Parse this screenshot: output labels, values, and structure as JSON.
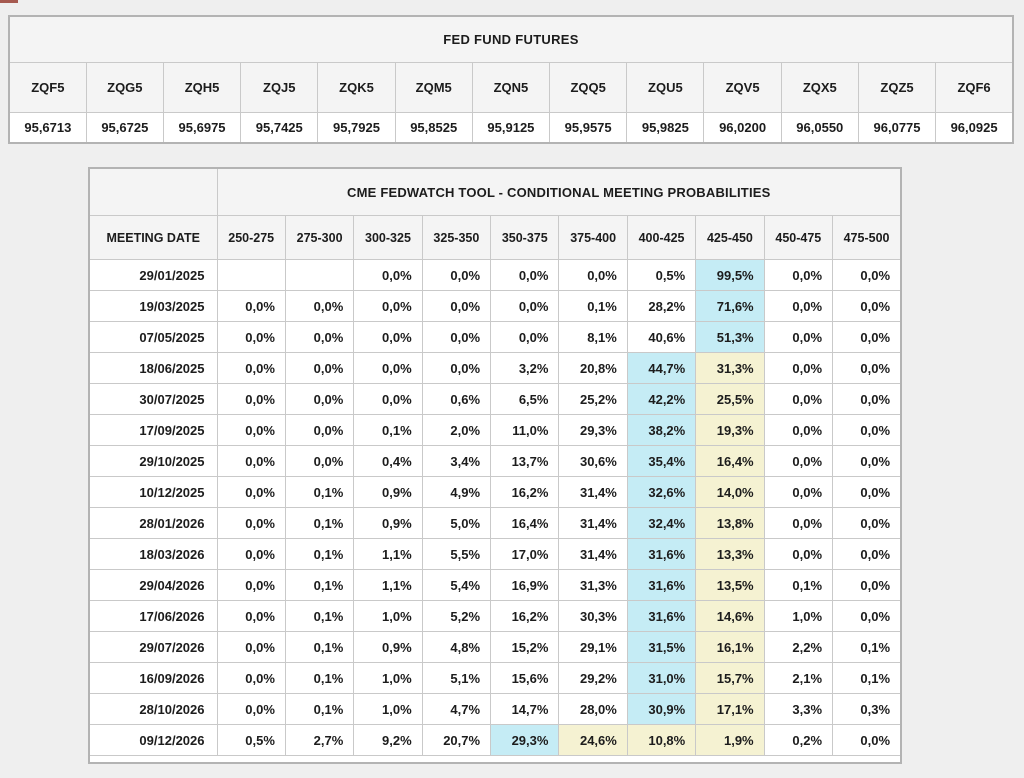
{
  "page": {
    "background": "#efefef"
  },
  "styles": {
    "highlight_blue": "#c5ecf5",
    "highlight_yellow": "#f5f2d2",
    "header_bg": "#f4f4f4",
    "marker_color": "#a65a50"
  },
  "chart_data": [
    {
      "type": "table",
      "title": "FED FUND FUTURES",
      "columns": [
        "ZQF5",
        "ZQG5",
        "ZQH5",
        "ZQJ5",
        "ZQK5",
        "ZQM5",
        "ZQN5",
        "ZQQ5",
        "ZQU5",
        "ZQV5",
        "ZQX5",
        "ZQZ5",
        "ZQF6"
      ],
      "values": [
        "95,6713",
        "95,6725",
        "95,6975",
        "95,7425",
        "95,7925",
        "95,8525",
        "95,9125",
        "95,9575",
        "95,9825",
        "96,0200",
        "96,0550",
        "96,0775",
        "96,0925"
      ]
    },
    {
      "type": "table",
      "title": "CME FEDWATCH TOOL - CONDITIONAL MEETING PROBABILITIES",
      "columns": [
        "MEETING DATE",
        "250-275",
        "275-300",
        "300-325",
        "325-350",
        "350-375",
        "375-400",
        "400-425",
        "425-450",
        "450-475",
        "475-500"
      ],
      "rows": [
        {
          "date": "29/01/2025",
          "values": [
            "",
            "",
            "0,0%",
            "0,0%",
            "0,0%",
            "0,0%",
            "0,5%",
            "99,5%",
            "0,0%",
            "0,0%"
          ],
          "highlights": {
            "7": "blue"
          }
        },
        {
          "date": "19/03/2025",
          "values": [
            "0,0%",
            "0,0%",
            "0,0%",
            "0,0%",
            "0,0%",
            "0,1%",
            "28,2%",
            "71,6%",
            "0,0%",
            "0,0%"
          ],
          "highlights": {
            "7": "blue"
          }
        },
        {
          "date": "07/05/2025",
          "values": [
            "0,0%",
            "0,0%",
            "0,0%",
            "0,0%",
            "0,0%",
            "8,1%",
            "40,6%",
            "51,3%",
            "0,0%",
            "0,0%"
          ],
          "highlights": {
            "7": "blue"
          }
        },
        {
          "date": "18/06/2025",
          "values": [
            "0,0%",
            "0,0%",
            "0,0%",
            "0,0%",
            "3,2%",
            "20,8%",
            "44,7%",
            "31,3%",
            "0,0%",
            "0,0%"
          ],
          "highlights": {
            "6": "blue",
            "7": "yellow"
          }
        },
        {
          "date": "30/07/2025",
          "values": [
            "0,0%",
            "0,0%",
            "0,0%",
            "0,6%",
            "6,5%",
            "25,2%",
            "42,2%",
            "25,5%",
            "0,0%",
            "0,0%"
          ],
          "highlights": {
            "6": "blue",
            "7": "yellow"
          }
        },
        {
          "date": "17/09/2025",
          "values": [
            "0,0%",
            "0,0%",
            "0,1%",
            "2,0%",
            "11,0%",
            "29,3%",
            "38,2%",
            "19,3%",
            "0,0%",
            "0,0%"
          ],
          "highlights": {
            "6": "blue",
            "7": "yellow"
          }
        },
        {
          "date": "29/10/2025",
          "values": [
            "0,0%",
            "0,0%",
            "0,4%",
            "3,4%",
            "13,7%",
            "30,6%",
            "35,4%",
            "16,4%",
            "0,0%",
            "0,0%"
          ],
          "highlights": {
            "6": "blue",
            "7": "yellow"
          }
        },
        {
          "date": "10/12/2025",
          "values": [
            "0,0%",
            "0,1%",
            "0,9%",
            "4,9%",
            "16,2%",
            "31,4%",
            "32,6%",
            "14,0%",
            "0,0%",
            "0,0%"
          ],
          "highlights": {
            "6": "blue",
            "7": "yellow"
          }
        },
        {
          "date": "28/01/2026",
          "values": [
            "0,0%",
            "0,1%",
            "0,9%",
            "5,0%",
            "16,4%",
            "31,4%",
            "32,4%",
            "13,8%",
            "0,0%",
            "0,0%"
          ],
          "highlights": {
            "6": "blue",
            "7": "yellow"
          }
        },
        {
          "date": "18/03/2026",
          "values": [
            "0,0%",
            "0,1%",
            "1,1%",
            "5,5%",
            "17,0%",
            "31,4%",
            "31,6%",
            "13,3%",
            "0,0%",
            "0,0%"
          ],
          "highlights": {
            "6": "blue",
            "7": "yellow"
          }
        },
        {
          "date": "29/04/2026",
          "values": [
            "0,0%",
            "0,1%",
            "1,1%",
            "5,4%",
            "16,9%",
            "31,3%",
            "31,6%",
            "13,5%",
            "0,1%",
            "0,0%"
          ],
          "highlights": {
            "6": "blue",
            "7": "yellow"
          }
        },
        {
          "date": "17/06/2026",
          "values": [
            "0,0%",
            "0,1%",
            "1,0%",
            "5,2%",
            "16,2%",
            "30,3%",
            "31,6%",
            "14,6%",
            "1,0%",
            "0,0%"
          ],
          "highlights": {
            "6": "blue",
            "7": "yellow"
          }
        },
        {
          "date": "29/07/2026",
          "values": [
            "0,0%",
            "0,1%",
            "0,9%",
            "4,8%",
            "15,2%",
            "29,1%",
            "31,5%",
            "16,1%",
            "2,2%",
            "0,1%"
          ],
          "highlights": {
            "6": "blue",
            "7": "yellow"
          }
        },
        {
          "date": "16/09/2026",
          "values": [
            "0,0%",
            "0,1%",
            "1,0%",
            "5,1%",
            "15,6%",
            "29,2%",
            "31,0%",
            "15,7%",
            "2,1%",
            "0,1%"
          ],
          "highlights": {
            "6": "blue",
            "7": "yellow"
          }
        },
        {
          "date": "28/10/2026",
          "values": [
            "0,0%",
            "0,1%",
            "1,0%",
            "4,7%",
            "14,7%",
            "28,0%",
            "30,9%",
            "17,1%",
            "3,3%",
            "0,3%"
          ],
          "highlights": {
            "6": "blue",
            "7": "yellow"
          }
        },
        {
          "date": "09/12/2026",
          "values": [
            "0,5%",
            "2,7%",
            "9,2%",
            "20,7%",
            "29,3%",
            "24,6%",
            "10,8%",
            "1,9%",
            "0,2%",
            "0,0%"
          ],
          "highlights": {
            "4": "blue",
            "5": "yellow",
            "6": "yellow",
            "7": "yellow"
          }
        }
      ]
    }
  ]
}
